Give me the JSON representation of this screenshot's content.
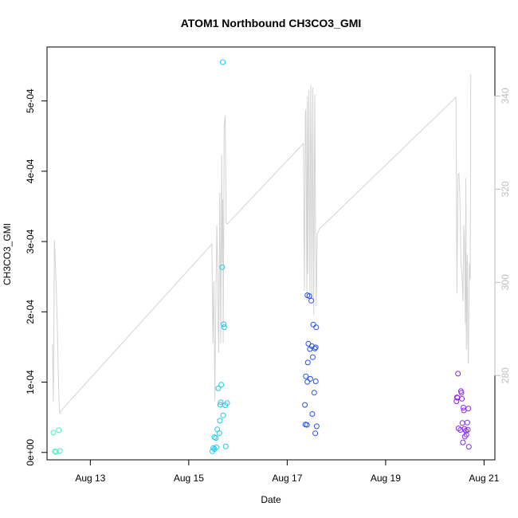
{
  "chart_data": {
    "type": "scatter",
    "title": "ATOM1 Northbound CH3CO3_GMI",
    "xlabel": "Date",
    "ylabel": "CH3CO3_GMI",
    "x_ticks": [
      {
        "value": 13,
        "label": "Aug 13"
      },
      {
        "value": 15,
        "label": "Aug 15"
      },
      {
        "value": 17,
        "label": "Aug 17"
      },
      {
        "value": 19,
        "label": "Aug 19"
      },
      {
        "value": 21,
        "label": "Aug 21"
      }
    ],
    "y_ticks": [
      {
        "value": 0,
        "label": "0e+00"
      },
      {
        "value": 0.0001,
        "label": "1e-04"
      },
      {
        "value": 0.0002,
        "label": "2e-04"
      },
      {
        "value": 0.0003,
        "label": "3e-04"
      },
      {
        "value": 0.0004,
        "label": "4e-04"
      },
      {
        "value": 0.0005,
        "label": "5e-04"
      }
    ],
    "y2_ticks": [
      {
        "value": 280,
        "label": "280"
      },
      {
        "value": 300,
        "label": "300"
      },
      {
        "value": 320,
        "label": "320"
      },
      {
        "value": 340,
        "label": "340"
      }
    ],
    "xlim": [
      12.12,
      21.22
    ],
    "ylim": [
      -1.05e-05,
      0.0005767
    ],
    "y2lim": [
      261.9,
      350.5
    ],
    "line_color": "#d3d3d3",
    "points": [
      {
        "x": 12.25,
        "y": 2.83e-05,
        "color": "#40f0c0"
      },
      {
        "x": 12.28,
        "y": 1.6e-06,
        "color": "#40f0c0"
      },
      {
        "x": 12.3,
        "y": 5e-07,
        "color": "#40f0c0"
      },
      {
        "x": 12.36,
        "y": 3.18e-05,
        "color": "#40f0c0"
      },
      {
        "x": 12.38,
        "y": 2.1e-06,
        "color": "#40f0c0"
      },
      {
        "x": 15.48,
        "y": 1.6e-06,
        "color": "#1ec8f0"
      },
      {
        "x": 15.5,
        "y": 6.3e-06,
        "color": "#1ec8f0"
      },
      {
        "x": 15.52,
        "y": 2.18e-05,
        "color": "#1ec8f0"
      },
      {
        "x": 15.55,
        "y": 2.07e-05,
        "color": "#1ec8f0"
      },
      {
        "x": 15.52,
        "y": 4.7e-06,
        "color": "#1ec8f0"
      },
      {
        "x": 15.56,
        "y": 7.3e-06,
        "color": "#1ec8f0"
      },
      {
        "x": 15.58,
        "y": 3.28e-05,
        "color": "#1ec8f0"
      },
      {
        "x": 15.6,
        "y": 9.11e-05,
        "color": "#1ec8f0"
      },
      {
        "x": 15.62,
        "y": 2.75e-05,
        "color": "#1ec8f0"
      },
      {
        "x": 15.63,
        "y": 4.52e-05,
        "color": "#1ec8f0"
      },
      {
        "x": 15.64,
        "y": 6.78e-05,
        "color": "#1ec8f0"
      },
      {
        "x": 15.65,
        "y": 7.13e-05,
        "color": "#1ec8f0"
      },
      {
        "x": 15.66,
        "y": 9.63e-05,
        "color": "#1ec8f0"
      },
      {
        "x": 15.68,
        "y": 0.0002635,
        "color": "#1ec8f0"
      },
      {
        "x": 15.69,
        "y": 0.0005552,
        "color": "#1ec8f0"
      },
      {
        "x": 15.7,
        "y": 5.28e-05,
        "color": "#1ec8f0"
      },
      {
        "x": 15.71,
        "y": 0.0001823,
        "color": "#1ec8f0"
      },
      {
        "x": 15.72,
        "y": 0.0001781,
        "color": "#1ec8f0"
      },
      {
        "x": 15.74,
        "y": 6.72e-05,
        "color": "#1ec8f0"
      },
      {
        "x": 15.75,
        "y": 8.5e-06,
        "color": "#1ec8f0"
      },
      {
        "x": 15.78,
        "y": 7.02e-05,
        "color": "#1ec8f0"
      },
      {
        "x": 17.36,
        "y": 6.76e-05,
        "color": "#2850f0"
      },
      {
        "x": 17.37,
        "y": 3.98e-05,
        "color": "#2850f0"
      },
      {
        "x": 17.38,
        "y": 0.0001083,
        "color": "#2850f0"
      },
      {
        "x": 17.4,
        "y": 3.93e-05,
        "color": "#2850f0"
      },
      {
        "x": 17.41,
        "y": 0.0001005,
        "color": "#2850f0"
      },
      {
        "x": 17.41,
        "y": 0.0002236,
        "color": "#2850f0"
      },
      {
        "x": 17.42,
        "y": 0.0001279,
        "color": "#2850f0"
      },
      {
        "x": 17.43,
        "y": 0.0001547,
        "color": "#2850f0"
      },
      {
        "x": 17.45,
        "y": 0.0002224,
        "color": "#2850f0"
      },
      {
        "x": 17.46,
        "y": 0.0001471,
        "color": "#2850f0"
      },
      {
        "x": 17.47,
        "y": 0.0001047,
        "color": "#2850f0"
      },
      {
        "x": 17.49,
        "y": 0.0002159,
        "color": "#2850f0"
      },
      {
        "x": 17.5,
        "y": 0.0001512,
        "color": "#2850f0"
      },
      {
        "x": 17.51,
        "y": 5.47e-05,
        "color": "#2850f0"
      },
      {
        "x": 17.52,
        "y": 0.0001355,
        "color": "#2850f0"
      },
      {
        "x": 17.53,
        "y": 0.000182,
        "color": "#2850f0"
      },
      {
        "x": 17.55,
        "y": 8.5e-05,
        "color": "#2850f0"
      },
      {
        "x": 17.56,
        "y": 0.0001477,
        "color": "#2850f0"
      },
      {
        "x": 17.57,
        "y": 2.73e-05,
        "color": "#2850f0"
      },
      {
        "x": 17.58,
        "y": 0.0001495,
        "color": "#2850f0"
      },
      {
        "x": 17.58,
        "y": 0.0001012,
        "color": "#2850f0"
      },
      {
        "x": 17.59,
        "y": 0.000178,
        "color": "#2850f0"
      },
      {
        "x": 17.6,
        "y": 3.72e-05,
        "color": "#2850f0"
      },
      {
        "x": 20.44,
        "y": 7.28e-05,
        "color": "#8c28f0"
      },
      {
        "x": 20.45,
        "y": 7.84e-05,
        "color": "#8c28f0"
      },
      {
        "x": 20.46,
        "y": 7.78e-05,
        "color": "#8c28f0"
      },
      {
        "x": 20.47,
        "y": 0.000112,
        "color": "#8c28f0"
      },
      {
        "x": 20.48,
        "y": 3.43e-05,
        "color": "#8c28f0"
      },
      {
        "x": 20.52,
        "y": 3.2e-05,
        "color": "#8c28f0"
      },
      {
        "x": 20.53,
        "y": 8.72e-05,
        "color": "#8c28f0"
      },
      {
        "x": 20.54,
        "y": 8.48e-05,
        "color": "#8c28f0"
      },
      {
        "x": 20.55,
        "y": 7.63e-05,
        "color": "#8c28f0"
      },
      {
        "x": 20.56,
        "y": 4.19e-05,
        "color": "#8c28f0"
      },
      {
        "x": 20.57,
        "y": 1.43e-05,
        "color": "#8c28f0"
      },
      {
        "x": 20.58,
        "y": 6.37e-05,
        "color": "#8c28f0"
      },
      {
        "x": 20.59,
        "y": 5.98e-05,
        "color": "#8c28f0"
      },
      {
        "x": 20.6,
        "y": 3.36e-05,
        "color": "#8c28f0"
      },
      {
        "x": 20.61,
        "y": 2.25e-05,
        "color": "#8c28f0"
      },
      {
        "x": 20.63,
        "y": 3.08e-05,
        "color": "#8c28f0"
      },
      {
        "x": 20.64,
        "y": 2.54e-05,
        "color": "#8c28f0"
      },
      {
        "x": 20.66,
        "y": 4.25e-05,
        "color": "#8c28f0"
      },
      {
        "x": 20.67,
        "y": 3.25e-05,
        "color": "#8c28f0"
      },
      {
        "x": 20.68,
        "y": 6.25e-05,
        "color": "#8c28f0"
      },
      {
        "x": 20.69,
        "y": 8.1e-06,
        "color": "#8c28f0"
      }
    ],
    "line_y2": [
      [
        12.23,
        286.7
      ],
      [
        12.25,
        274.3
      ],
      [
        12.27,
        309.0
      ],
      [
        12.29,
        304.1
      ],
      [
        12.31,
        298.1
      ],
      [
        12.33,
        290.1
      ],
      [
        12.35,
        280.3
      ],
      [
        12.37,
        272.7
      ],
      [
        12.38,
        271.9
      ],
      [
        12.4,
        272.4
      ],
      [
        15.47,
        308.2
      ],
      [
        15.49,
        286.9
      ],
      [
        15.51,
        300.2
      ],
      [
        15.53,
        274.5
      ],
      [
        15.55,
        294.9
      ],
      [
        15.57,
        312.3
      ],
      [
        15.58,
        306.0
      ],
      [
        15.59,
        300.9
      ],
      [
        15.6,
        289.4
      ],
      [
        15.61,
        284.9
      ],
      [
        15.63,
        319.3
      ],
      [
        15.65,
        286.9
      ],
      [
        15.67,
        327.3
      ],
      [
        15.68,
        304.2
      ],
      [
        15.69,
        317.8
      ],
      [
        15.7,
        287.0
      ],
      [
        15.72,
        333.4
      ],
      [
        15.74,
        335.8
      ],
      [
        15.76,
        312.8
      ],
      [
        15.78,
        312.5
      ],
      [
        17.33,
        329.8
      ],
      [
        17.35,
        298.1
      ],
      [
        17.37,
        336.0
      ],
      [
        17.38,
        337.2
      ],
      [
        17.4,
        296.1
      ],
      [
        17.41,
        339.9
      ],
      [
        17.42,
        301.8
      ],
      [
        17.44,
        341.2
      ],
      [
        17.46,
        296.7
      ],
      [
        17.48,
        342.4
      ],
      [
        17.49,
        330.3
      ],
      [
        17.5,
        296.5
      ],
      [
        17.52,
        341.8
      ],
      [
        17.54,
        293.0
      ],
      [
        17.56,
        340.3
      ],
      [
        17.58,
        307.3
      ],
      [
        17.59,
        294.9
      ],
      [
        17.61,
        310.5
      ],
      [
        17.63,
        310.7
      ],
      [
        17.65,
        311.4
      ],
      [
        20.43,
        339.7
      ],
      [
        20.44,
        317.3
      ],
      [
        20.45,
        297.6
      ],
      [
        20.47,
        323.0
      ],
      [
        20.49,
        323.5
      ],
      [
        20.51,
        317.5
      ],
      [
        20.53,
        304.1
      ],
      [
        20.55,
        302.1
      ],
      [
        20.57,
        295.9
      ],
      [
        20.59,
        312.3
      ],
      [
        20.61,
        304.0
      ],
      [
        20.62,
        291.1
      ],
      [
        20.63,
        322.4
      ],
      [
        20.64,
        285.6
      ],
      [
        20.66,
        306.0
      ],
      [
        20.67,
        288.3
      ],
      [
        20.68,
        282.6
      ],
      [
        20.7,
        304.1
      ],
      [
        20.72,
        300.5
      ],
      [
        20.73,
        344.7
      ]
    ]
  }
}
